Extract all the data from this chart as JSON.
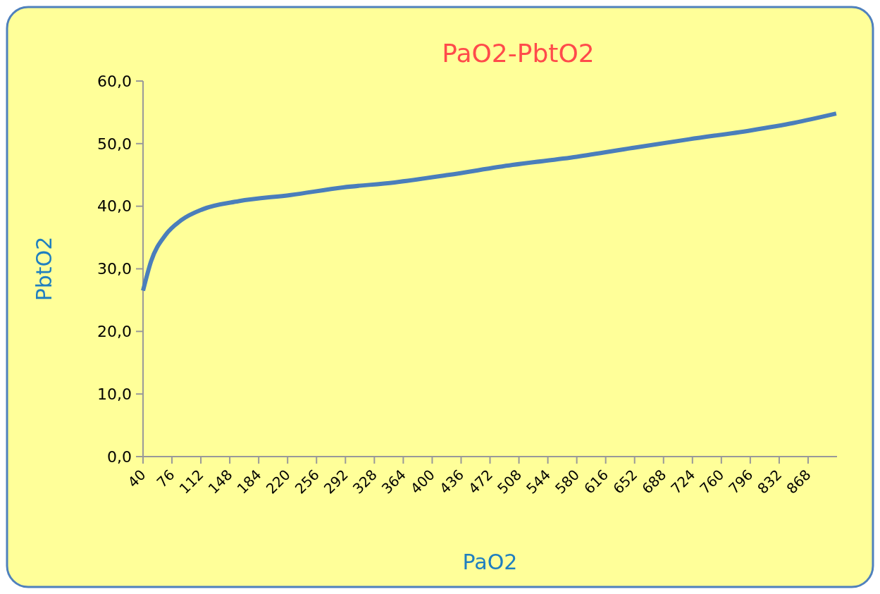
{
  "chart_data": {
    "type": "line",
    "title": "PaO2-PbtO2",
    "xlabel": "PaO2",
    "ylabel": "PbtO2",
    "x": [
      40,
      50,
      68,
      88,
      114,
      159,
      224,
      289,
      353,
      420,
      500,
      580,
      649,
      720,
      796,
      850,
      903
    ],
    "series": [
      {
        "color": "#4a7ebb",
        "values": [
          26.5,
          31.2,
          35.4,
          37.8,
          39.5,
          40.8,
          41.8,
          43.0,
          43.8,
          45.0,
          46.6,
          47.9,
          49.3,
          50.7,
          52.1,
          53.3,
          54.8
        ]
      }
    ],
    "xlim": [
      40,
      904
    ],
    "xticks": [
      40,
      76,
      112,
      148,
      184,
      220,
      256,
      292,
      328,
      364,
      400,
      436,
      472,
      508,
      544,
      580,
      616,
      652,
      688,
      724,
      760,
      796,
      832,
      868
    ],
    "ylim": [
      0,
      60
    ],
    "yticks": [
      {
        "value": 0,
        "label": "0,0"
      },
      {
        "value": 10,
        "label": "10,0"
      },
      {
        "value": 20,
        "label": "20,0"
      },
      {
        "value": 30,
        "label": "30,0"
      },
      {
        "value": 40,
        "label": "40,0"
      },
      {
        "value": 50,
        "label": "50,0"
      },
      {
        "value": 60,
        "label": "60,0"
      }
    ],
    "grid": false,
    "marker": "none",
    "line_style": "solid"
  }
}
